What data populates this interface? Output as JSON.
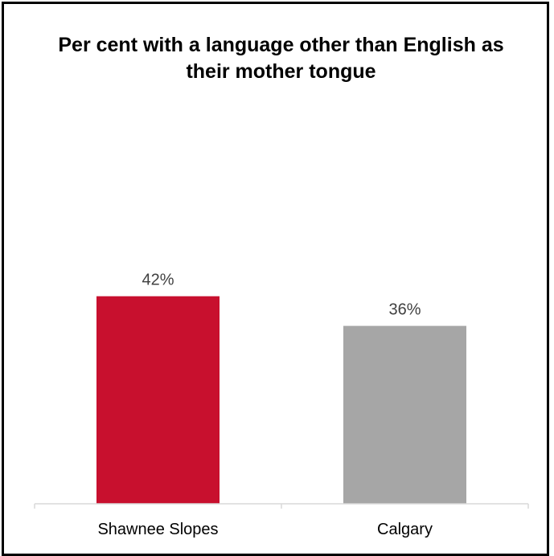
{
  "chart_data": {
    "type": "bar",
    "title": "Per cent with a language other than English as their mother tongue",
    "categories": [
      "Shawnee Slopes",
      "Calgary"
    ],
    "values": [
      42,
      36
    ],
    "value_labels": [
      "42%",
      "36%"
    ],
    "colors": [
      "#C8102E",
      "#A6A6A6"
    ],
    "xlabel": "",
    "ylabel": "",
    "ylim": [
      0,
      100
    ],
    "grid": false,
    "legend": "none"
  }
}
